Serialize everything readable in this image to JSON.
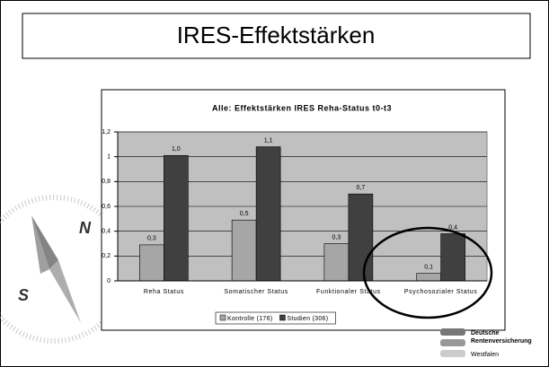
{
  "slide": {
    "title": "IRES-Effektstärken"
  },
  "logo": {
    "lines": [
      "Deutsche",
      "Rentenversicherung",
      "Westfalen"
    ]
  },
  "chart_data": {
    "type": "bar",
    "title": "Alle: Effektstärken IRES Reha-Status t0-t3",
    "categories": [
      "Reha Status",
      "Somatischer Status",
      "Funktionaler Status",
      "Psychosozialer Status"
    ],
    "series": [
      {
        "name": "Kontrolle (176)",
        "color": "#a6a6a6",
        "values": [
          0.29,
          0.49,
          0.3,
          0.06
        ],
        "value_labels": [
          "0,3",
          "0,5",
          "0,3",
          "0,1"
        ]
      },
      {
        "name": "Studien (306)",
        "color": "#404040",
        "values": [
          1.01,
          1.08,
          0.7,
          0.38
        ],
        "value_labels": [
          "1,0",
          "1,1",
          "0,7",
          "0,4"
        ]
      }
    ],
    "ylim": [
      0,
      1.2
    ],
    "yticks": [
      0,
      {
        "value": 0.2,
        "label": "0,2"
      },
      {
        "value": 0.4,
        "label": "0,4"
      },
      {
        "value": 0.6,
        "label": "0,6"
      },
      {
        "value": 0.8,
        "label": "0,8"
      },
      1,
      {
        "value": 1.2,
        "label": "1,2"
      }
    ],
    "grid": true,
    "legend": "bottom"
  }
}
